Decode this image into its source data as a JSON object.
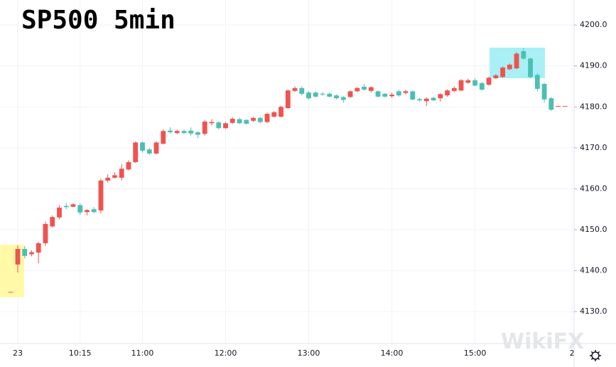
{
  "chart_data": {
    "type": "candlestick",
    "title": "SP500 5min",
    "watermark": "WikiFX",
    "up_color": "#ef5350",
    "down_color": "#4dbfb2",
    "grid": true,
    "xlim": [
      -1.56,
      81.3
    ],
    "ylim": [
      4122.2,
      4206.1
    ],
    "xticks": [
      {
        "value": 1,
        "label": "23"
      },
      {
        "value": 10,
        "label": "10:15"
      },
      {
        "value": 19,
        "label": "11:00"
      },
      {
        "value": 31,
        "label": "12:00"
      },
      {
        "value": 43,
        "label": "13:00"
      },
      {
        "value": 55,
        "label": "14:00"
      },
      {
        "value": 67,
        "label": "15:00"
      },
      {
        "value": 81,
        "label": "2"
      }
    ],
    "yticks": [
      {
        "value": 4130,
        "label": "4130.0"
      },
      {
        "value": 4140,
        "label": "4140.0"
      },
      {
        "value": 4150,
        "label": "4150.0"
      },
      {
        "value": 4160,
        "label": "4160.0"
      },
      {
        "value": 4170,
        "label": "4170.0"
      },
      {
        "value": 4180,
        "label": "4180.0"
      },
      {
        "value": 4190,
        "label": "4190.0"
      },
      {
        "value": 4200,
        "label": "4200.0"
      }
    ],
    "open": [
      4134.8,
      4141.5,
      4145.3,
      4144,
      4144.4,
      4146.7,
      4150.8,
      4153,
      4155.8,
      4155.6,
      4156,
      4154.3,
      4155,
      4154.7,
      4162,
      4162.7,
      4162.7,
      4164.7,
      4166.5,
      4171.3,
      4169.6,
      4168.6,
      4171,
      4174.2,
      4173.6,
      4174.1,
      4174.2,
      4173.8,
      4173.4,
      4176,
      4176.2,
      4174.8,
      4176.1,
      4177,
      4176.8,
      4176.6,
      4177.3,
      4176.3,
      4177.6,
      4177.6,
      4179.7,
      4183.9,
      4184.6,
      4183.5,
      4183.5,
      4183.2,
      4183.2,
      4182.8,
      4182.4,
      4182.4,
      4183.8,
      4184.9,
      4183.9,
      4183.8,
      4183.2,
      4182.6,
      4183.8,
      4183.4,
      4183.8,
      4181.9,
      4181.4,
      4182.2,
      4182.1,
      4182.8,
      4183.9,
      4184,
      4185.9,
      4186.5,
      4185.8,
      4185.4,
      4187,
      4187.3,
      4189.2,
      4189.4,
      4193.6,
      4191.8,
      4187.8,
      4185.6,
      4182.1,
      4180.1,
      4180.2
    ],
    "high": [
      4134.8,
      4146.2,
      4146,
      4145,
      4147,
      4152,
      4153.5,
      4156,
      4156.5,
      4156.5,
      4156.5,
      4155,
      4155.5,
      4162.5,
      4163.5,
      4164,
      4166,
      4167,
      4171.6,
      4171.5,
      4170,
      4171.6,
      4174.5,
      4175,
      4174.5,
      4174.5,
      4175,
      4174,
      4176.8,
      4177,
      4176.5,
      4176.3,
      4177.4,
      4177.3,
      4177,
      4177.5,
      4177.6,
      4178.6,
      4179,
      4180.3,
      4184.3,
      4185,
      4185,
      4183.8,
      4183.8,
      4183.6,
      4183.5,
      4183,
      4182.6,
      4184,
      4184.8,
      4185.6,
      4185,
      4184,
      4183.4,
      4183.4,
      4184.2,
      4184.2,
      4184,
      4182.2,
      4182.3,
      4182.5,
      4183.4,
      4184.3,
      4185,
      4186.8,
      4186.9,
      4187,
      4186.1,
      4187.4,
      4188,
      4189.9,
      4190.6,
      4193.4,
      4194.3,
      4192,
      4188.2,
      4185.9,
      4182.4,
      4180.3,
      4180.2
    ],
    "low": [
      4134.8,
      4139.5,
      4143,
      4143.5,
      4141.8,
      4146,
      4150.5,
      4152.5,
      4155,
      4155.5,
      4153.6,
      4153.5,
      4154,
      4154,
      4161.5,
      4162.5,
      4162,
      4164.5,
      4166.3,
      4168.8,
      4168.3,
      4168.4,
      4170.8,
      4173.5,
      4173.3,
      4173.4,
      4173,
      4172.4,
      4173,
      4175.5,
      4174.5,
      4174.6,
      4175.8,
      4175.8,
      4175.6,
      4176.3,
      4176,
      4176,
      4177.4,
      4177.4,
      4179.5,
      4183.6,
      4182.8,
      4181.8,
      4182.3,
      4182.7,
      4182.3,
      4181.8,
      4181,
      4182.2,
      4183.6,
      4184,
      4183.5,
      4182.3,
      4182.3,
      4182.2,
      4182.5,
      4183,
      4181.6,
      4181.3,
      4180.2,
      4181.4,
      4181.3,
      4182.5,
      4183.6,
      4183.8,
      4185.6,
      4185,
      4184,
      4185.2,
      4186.8,
      4187.1,
      4189,
      4189.2,
      4191.5,
      4187,
      4183.8,
      4181,
      4179,
      4180,
      4180.2
    ],
    "close": [
      4134.8,
      4145.3,
      4143.6,
      4144.5,
      4146.7,
      4151.4,
      4153.1,
      4155.4,
      4155.5,
      4156.2,
      4154.2,
      4154.8,
      4154.3,
      4162,
      4162.7,
      4163.3,
      4164.9,
      4166.5,
      4171.3,
      4169.3,
      4168.6,
      4171.3,
      4174.1,
      4173.8,
      4174.1,
      4173.6,
      4173.5,
      4173.2,
      4176.4,
      4176.3,
      4174.8,
      4176,
      4177.1,
      4176,
      4175.9,
      4177.3,
      4176.3,
      4178.3,
      4178.7,
      4180,
      4184,
      4184.6,
      4183.2,
      4182.1,
      4182.5,
      4183,
      4182.5,
      4182.1,
      4181.7,
      4183.8,
      4184.6,
      4184.2,
      4184.8,
      4182.5,
      4182.5,
      4183,
      4182.8,
      4183.8,
      4181.8,
      4181.6,
      4182,
      4181.6,
      4183.1,
      4184,
      4184.6,
      4186.5,
      4186.5,
      4185.2,
      4184.2,
      4187.1,
      4187.7,
      4189.6,
      4190.3,
      4193,
      4191.8,
      4187.3,
      4184.4,
      4181.8,
      4179.3,
      4180.2,
      4180.2
    ]
  }
}
